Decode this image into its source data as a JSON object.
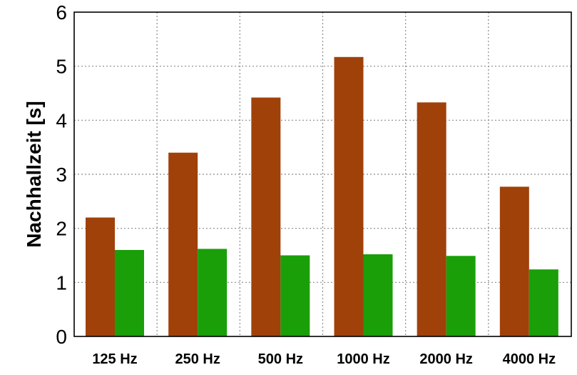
{
  "chart_data": {
    "type": "bar",
    "title": "",
    "xlabel": "",
    "ylabel": "Nachhallzeit [s]",
    "categories": [
      "125 Hz",
      "250 Hz",
      "500 Hz",
      "1000 Hz",
      "2000 Hz",
      "4000 Hz"
    ],
    "series": [
      {
        "values": [
          2.2,
          3.4,
          4.42,
          5.17,
          4.33,
          2.77
        ],
        "color": "#A0410A"
      },
      {
        "values": [
          1.6,
          1.62,
          1.5,
          1.52,
          1.49,
          1.24
        ],
        "color": "#1A9F09"
      }
    ],
    "ylim": [
      0,
      6
    ],
    "yticks": [
      "0",
      "1",
      "2",
      "3",
      "4",
      "5",
      "6"
    ],
    "grid": true,
    "legend": "none"
  }
}
